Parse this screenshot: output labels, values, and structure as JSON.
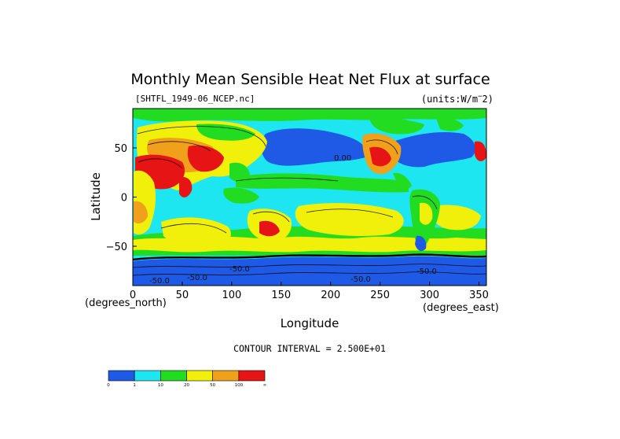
{
  "chart_data": {
    "type": "heatmap",
    "title": "Monthly Mean Sensible Heat Net Flux at surface",
    "dataset_label": "[SHTFL_1949-06_NCEP.nc]",
    "units_label": "(units:W/m^2)",
    "units_prefix": "(units:W/m",
    "units_suffix": "2)",
    "xlabel": "Longitude",
    "ylabel": "Latitude",
    "x_unit_label": "(degrees_east)",
    "y_unit_label": "(degrees_north)",
    "xlim": [
      0,
      357.5
    ],
    "ylim": [
      -90,
      90
    ],
    "x_ticks": [
      0,
      50,
      100,
      150,
      200,
      250,
      300,
      350
    ],
    "y_ticks": [
      -50,
      0,
      50
    ],
    "contour_interval_text": "CONTOUR INTERVAL = 2.500E+01",
    "contour_labels": [
      "0.00",
      "-50.0",
      "-50.0",
      "-50.0",
      "-50.0",
      "-50.0"
    ],
    "colorbar": {
      "bins": [
        {
          "label": "0",
          "color": "#1e5ae6"
        },
        {
          "label": "1",
          "color": "#1ee6f0"
        },
        {
          "label": "10",
          "color": "#22dc22"
        },
        {
          "label": "20",
          "color": "#f0f00a"
        },
        {
          "label": "50",
          "color": "#f0a01a"
        },
        {
          "label": "100",
          "color": "#e61414"
        }
      ],
      "end_label": "∞"
    }
  }
}
